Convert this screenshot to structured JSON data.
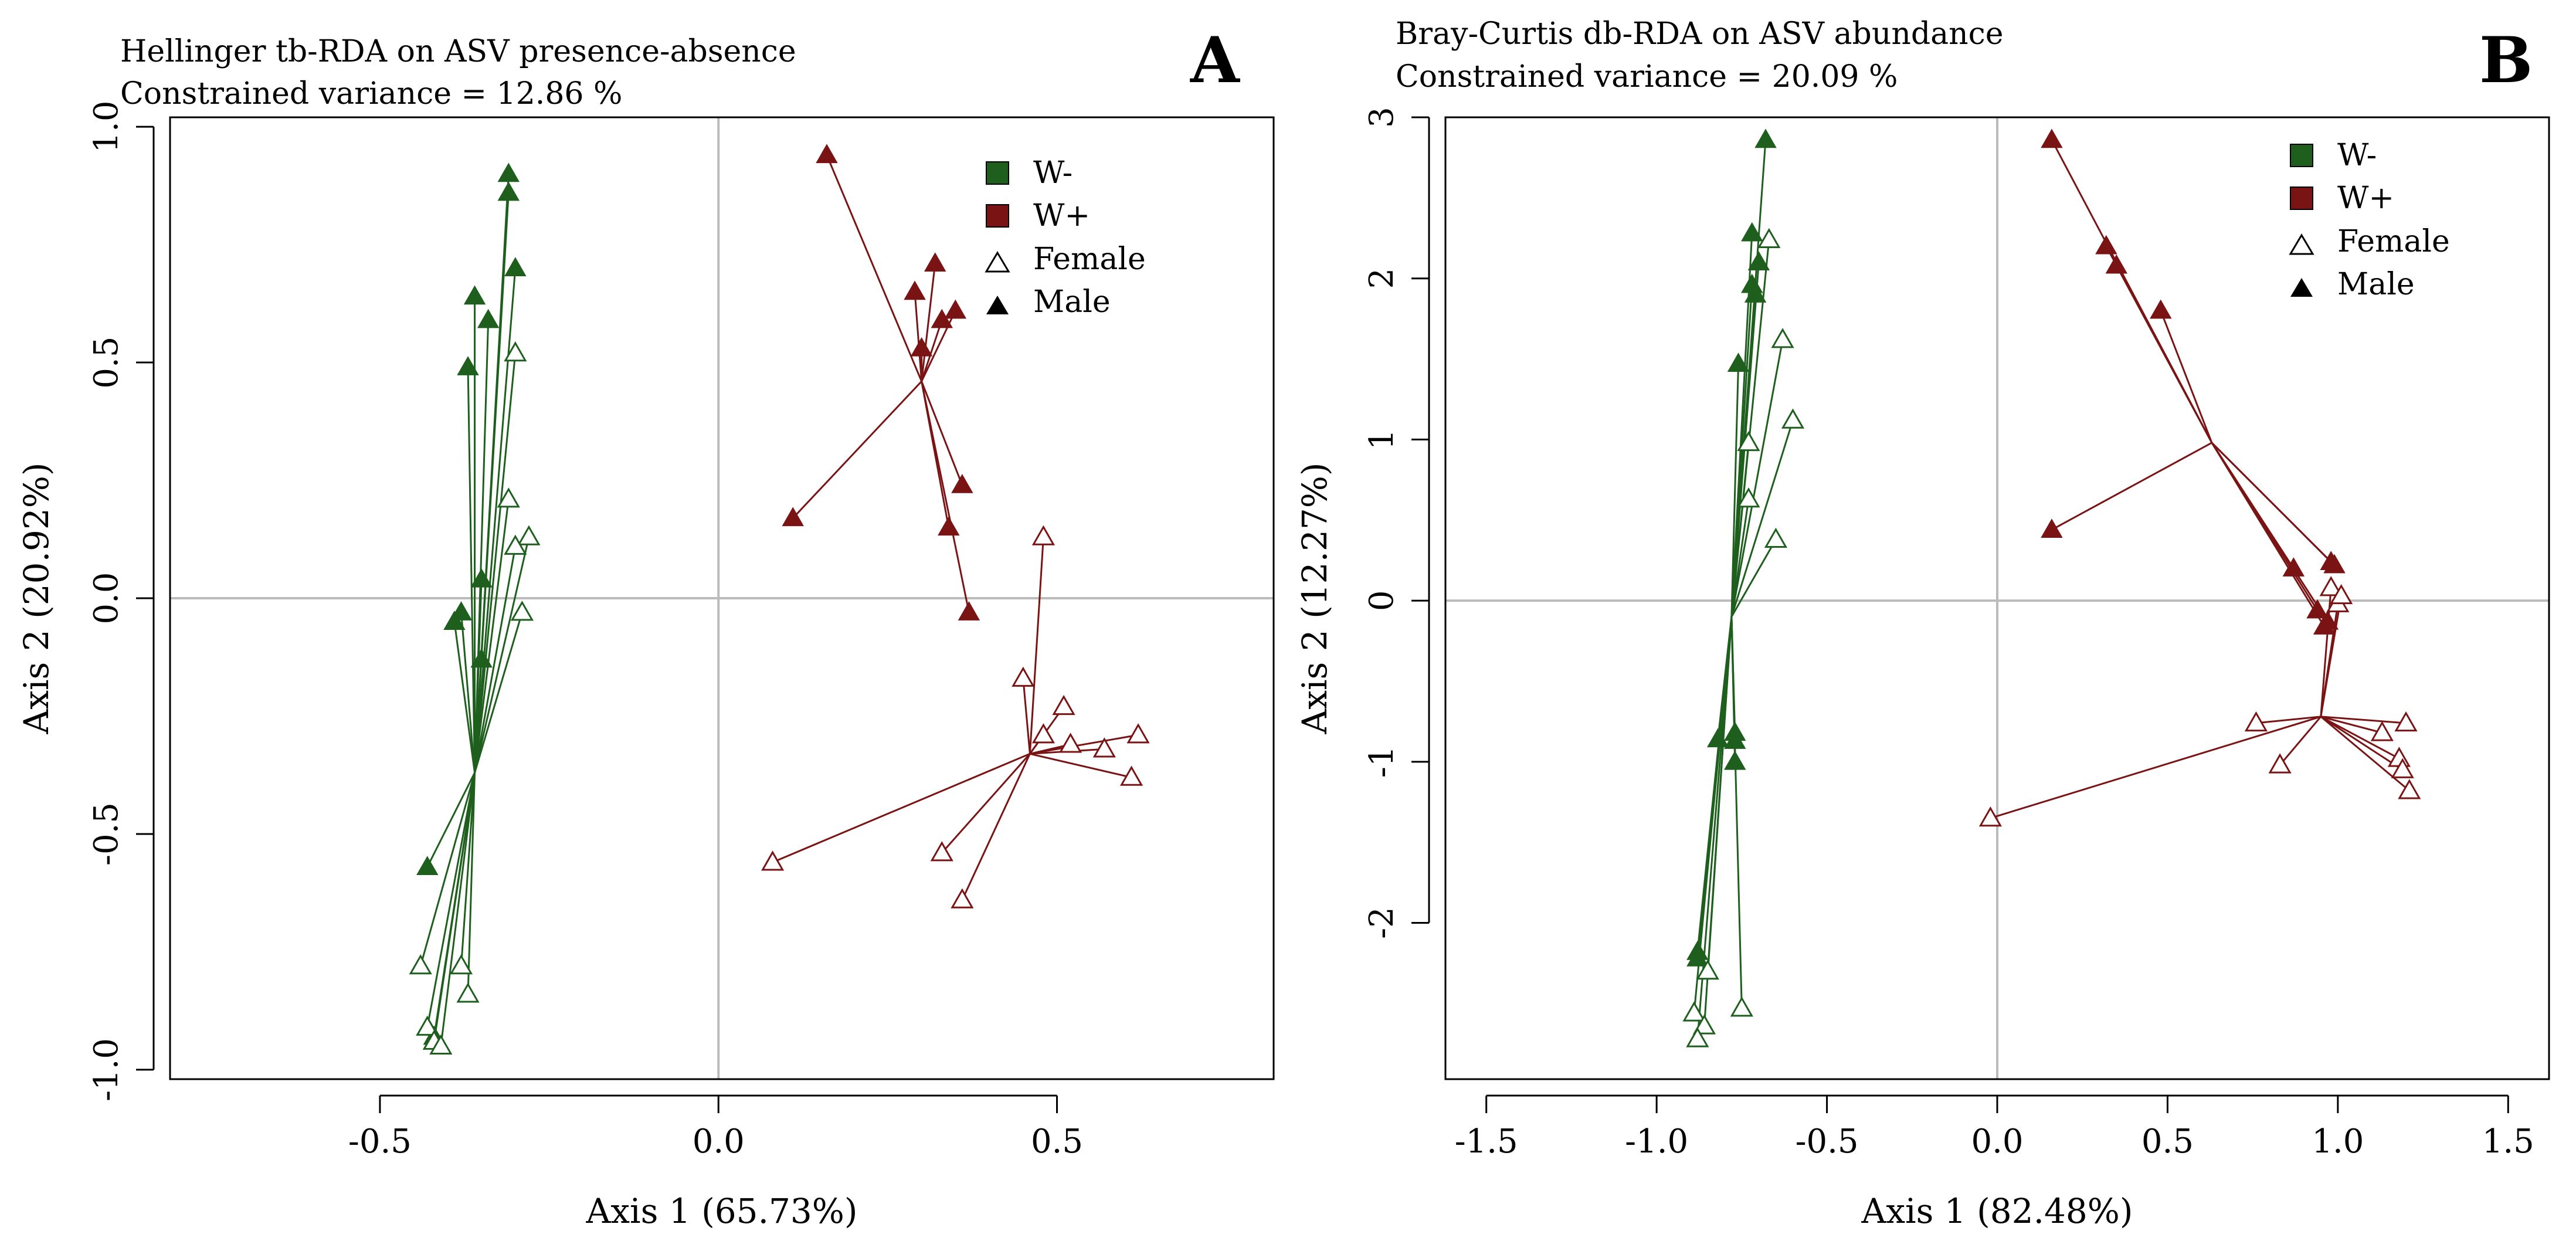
{
  "colors": {
    "w_minus": "#1e5f1e",
    "w_plus": "#7a1414",
    "ref_line": "#bbbbbb",
    "frame": "#000000"
  },
  "chart_data": [
    {
      "type": "scatter",
      "panel_label": "A",
      "title": "Hellinger tb-RDA on ASV presence-absence",
      "subtitle": "Constrained variance = 12.86 %",
      "xlabel": "Axis 1 (65.73%)",
      "ylabel": "Axis 2 (20.92%)",
      "xlim": [
        -0.81,
        0.82
      ],
      "ylim": [
        -1.02,
        1.02
      ],
      "xticks": [
        -0.5,
        0.0,
        0.5
      ],
      "xtick_labels": [
        "-0.5",
        "0.0",
        "0.5"
      ],
      "yticks": [
        -1.0,
        -0.5,
        0.0,
        0.5,
        1.0
      ],
      "ytick_labels": [
        "-1.0",
        "-0.5",
        "0.0",
        "0.5",
        "1.0"
      ],
      "legend": {
        "position": "top-right",
        "entries": [
          {
            "label": "W-",
            "marker": "filled-square",
            "color_key": "w_minus"
          },
          {
            "label": "W+",
            "marker": "filled-square",
            "color_key": "w_plus"
          },
          {
            "label": "Female",
            "marker": "open-triangle",
            "color_key": ""
          },
          {
            "label": "Male",
            "marker": "filled-triangle",
            "color_key": ""
          }
        ]
      },
      "groups": [
        {
          "name": "W- Male",
          "treatment": "W-",
          "sex": "Male",
          "centroid": [
            -0.36,
            -0.37
          ],
          "points": [
            [
              -0.31,
              0.9
            ],
            [
              -0.31,
              0.86
            ],
            [
              -0.3,
              0.7
            ],
            [
              -0.36,
              0.64
            ],
            [
              -0.34,
              0.59
            ],
            [
              -0.37,
              0.49
            ],
            [
              -0.35,
              0.04
            ],
            [
              -0.38,
              -0.03
            ],
            [
              -0.39,
              -0.05
            ],
            [
              -0.35,
              -0.13
            ],
            [
              -0.43,
              -0.57
            ],
            [
              -0.42,
              -0.93
            ]
          ]
        },
        {
          "name": "W- Female",
          "treatment": "W-",
          "sex": "Female",
          "centroid": [
            -0.36,
            -0.37
          ],
          "points": [
            [
              -0.3,
              0.52
            ],
            [
              -0.31,
              0.21
            ],
            [
              -0.28,
              0.13
            ],
            [
              -0.3,
              0.11
            ],
            [
              -0.29,
              -0.03
            ],
            [
              -0.44,
              -0.78
            ],
            [
              -0.38,
              -0.78
            ],
            [
              -0.37,
              -0.84
            ],
            [
              -0.43,
              -0.91
            ],
            [
              -0.42,
              -0.94
            ],
            [
              -0.41,
              -0.95
            ]
          ]
        },
        {
          "name": "W+ Male",
          "treatment": "W+",
          "sex": "Male",
          "centroid": [
            0.3,
            0.46
          ],
          "points": [
            [
              0.16,
              0.94
            ],
            [
              0.32,
              0.71
            ],
            [
              0.29,
              0.65
            ],
            [
              0.35,
              0.61
            ],
            [
              0.33,
              0.59
            ],
            [
              0.3,
              0.53
            ],
            [
              0.11,
              0.17
            ],
            [
              0.36,
              0.24
            ],
            [
              0.34,
              0.15
            ],
            [
              0.37,
              -0.03
            ]
          ]
        },
        {
          "name": "W+ Female",
          "treatment": "W+",
          "sex": "Female",
          "centroid": [
            0.46,
            -0.33
          ],
          "points": [
            [
              0.48,
              0.13
            ],
            [
              0.45,
              -0.17
            ],
            [
              0.51,
              -0.23
            ],
            [
              0.48,
              -0.29
            ],
            [
              0.52,
              -0.31
            ],
            [
              0.57,
              -0.32
            ],
            [
              0.62,
              -0.29
            ],
            [
              0.61,
              -0.38
            ],
            [
              0.33,
              -0.54
            ],
            [
              0.08,
              -0.56
            ],
            [
              0.36,
              -0.64
            ]
          ]
        }
      ]
    },
    {
      "type": "scatter",
      "panel_label": "B",
      "title": "Bray-Curtis db-RDA on ASV abundance",
      "subtitle": "Constrained variance = 20.09 %",
      "xlabel": "Axis 1 (82.48%)",
      "ylabel": "Axis 2 (12.27%)",
      "xlim": [
        -1.62,
        1.62
      ],
      "ylim": [
        -2.97,
        3.0
      ],
      "xticks": [
        -1.5,
        -1.0,
        -0.5,
        0.0,
        0.5,
        1.0,
        1.5
      ],
      "xtick_labels": [
        "-1.5",
        "-1.0",
        "-0.5",
        "0.0",
        "0.5",
        "1.0",
        "1.5"
      ],
      "yticks": [
        -2,
        -1,
        0,
        1,
        2,
        3
      ],
      "ytick_labels": [
        "-2",
        "-1",
        "0",
        "1",
        "2",
        "3"
      ],
      "legend": {
        "position": "top-right",
        "entries": [
          {
            "label": "W-",
            "marker": "filled-square",
            "color_key": "w_minus"
          },
          {
            "label": "W+",
            "marker": "filled-square",
            "color_key": "w_plus"
          },
          {
            "label": "Female",
            "marker": "open-triangle",
            "color_key": ""
          },
          {
            "label": "Male",
            "marker": "filled-triangle",
            "color_key": ""
          }
        ]
      },
      "groups": [
        {
          "name": "W- Male",
          "treatment": "W-",
          "sex": "Male",
          "centroid": [
            -0.78,
            -0.1
          ],
          "points": [
            [
              -0.68,
              2.86
            ],
            [
              -0.72,
              2.28
            ],
            [
              -0.7,
              2.1
            ],
            [
              -0.72,
              1.96
            ],
            [
              -0.71,
              1.9
            ],
            [
              -0.76,
              1.47
            ],
            [
              -0.82,
              -0.86
            ],
            [
              -0.77,
              -0.82
            ],
            [
              -0.77,
              -0.87
            ],
            [
              -0.77,
              -1.0
            ],
            [
              -0.88,
              -2.18
            ],
            [
              -0.88,
              -2.22
            ]
          ]
        },
        {
          "name": "W- Female",
          "treatment": "W-",
          "sex": "Female",
          "centroid": [
            -0.78,
            -0.1
          ],
          "points": [
            [
              -0.67,
              2.24
            ],
            [
              -0.63,
              1.62
            ],
            [
              -0.6,
              1.12
            ],
            [
              -0.73,
              0.98
            ],
            [
              -0.73,
              0.63
            ],
            [
              -0.65,
              0.38
            ],
            [
              -0.85,
              -2.3
            ],
            [
              -0.89,
              -2.56
            ],
            [
              -0.86,
              -2.64
            ],
            [
              -0.88,
              -2.72
            ],
            [
              -0.75,
              -2.53
            ]
          ]
        },
        {
          "name": "W+ Male",
          "treatment": "W+",
          "sex": "Male",
          "centroid": [
            0.63,
            0.98
          ],
          "points": [
            [
              0.16,
              2.86
            ],
            [
              0.32,
              2.2
            ],
            [
              0.35,
              2.08
            ],
            [
              0.48,
              1.8
            ],
            [
              0.16,
              0.44
            ],
            [
              0.87,
              0.2
            ],
            [
              0.98,
              0.24
            ],
            [
              0.99,
              0.22
            ],
            [
              0.94,
              -0.06
            ],
            [
              0.97,
              -0.13
            ],
            [
              0.96,
              -0.16
            ]
          ]
        },
        {
          "name": "W+ Female",
          "treatment": "W+",
          "sex": "Female",
          "centroid": [
            0.95,
            -0.72
          ],
          "points": [
            [
              0.98,
              0.08
            ],
            [
              1.0,
              -0.02
            ],
            [
              1.01,
              0.03
            ],
            [
              0.76,
              -0.76
            ],
            [
              1.2,
              -0.76
            ],
            [
              1.13,
              -0.82
            ],
            [
              1.18,
              -0.98
            ],
            [
              1.19,
              -1.05
            ],
            [
              1.21,
              -1.18
            ],
            [
              0.83,
              -1.02
            ],
            [
              -0.02,
              -1.35
            ]
          ]
        }
      ]
    }
  ]
}
